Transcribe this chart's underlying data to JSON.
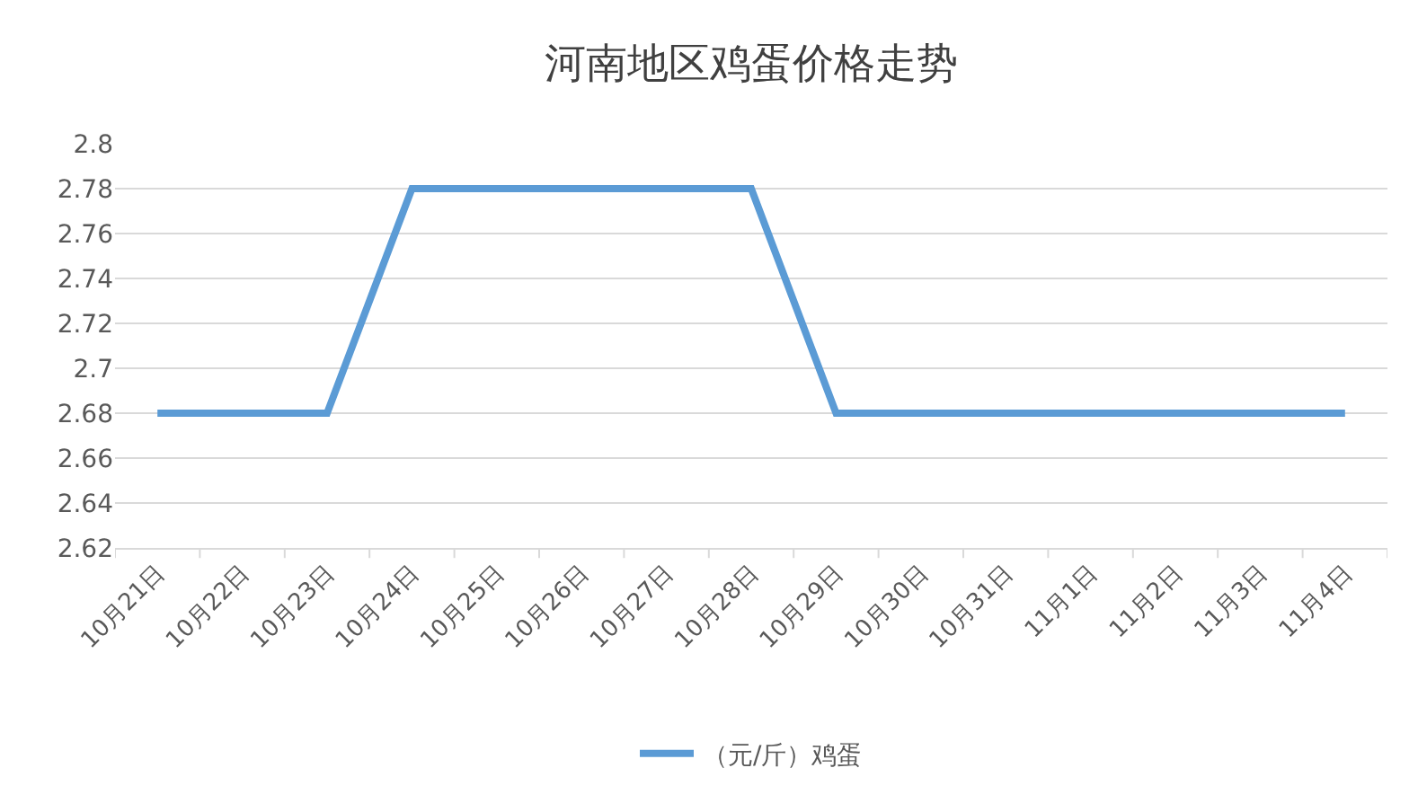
{
  "chart_data": {
    "type": "line",
    "title": "河南地区鸡蛋价格走势",
    "categories": [
      "10月21日",
      "10月22日",
      "10月23日",
      "10月24日",
      "10月25日",
      "10月26日",
      "10月27日",
      "10月28日",
      "10月29日",
      "10月30日",
      "10月31日",
      "11月1日",
      "11月2日",
      "11月3日",
      "11月4日"
    ],
    "series": [
      {
        "name": "（元/斤）鸡蛋",
        "color": "#5b9bd5",
        "values": [
          2.68,
          2.68,
          2.68,
          2.78,
          2.78,
          2.78,
          2.78,
          2.78,
          2.68,
          2.68,
          2.68,
          2.68,
          2.68,
          2.68,
          2.68
        ]
      }
    ],
    "ylim": [
      2.62,
      2.8
    ],
    "yticks": [
      2.62,
      2.64,
      2.66,
      2.68,
      2.7,
      2.72,
      2.74,
      2.76,
      2.78,
      2.8
    ],
    "grid": "y",
    "legend": "bottom",
    "line_style": "solid"
  }
}
